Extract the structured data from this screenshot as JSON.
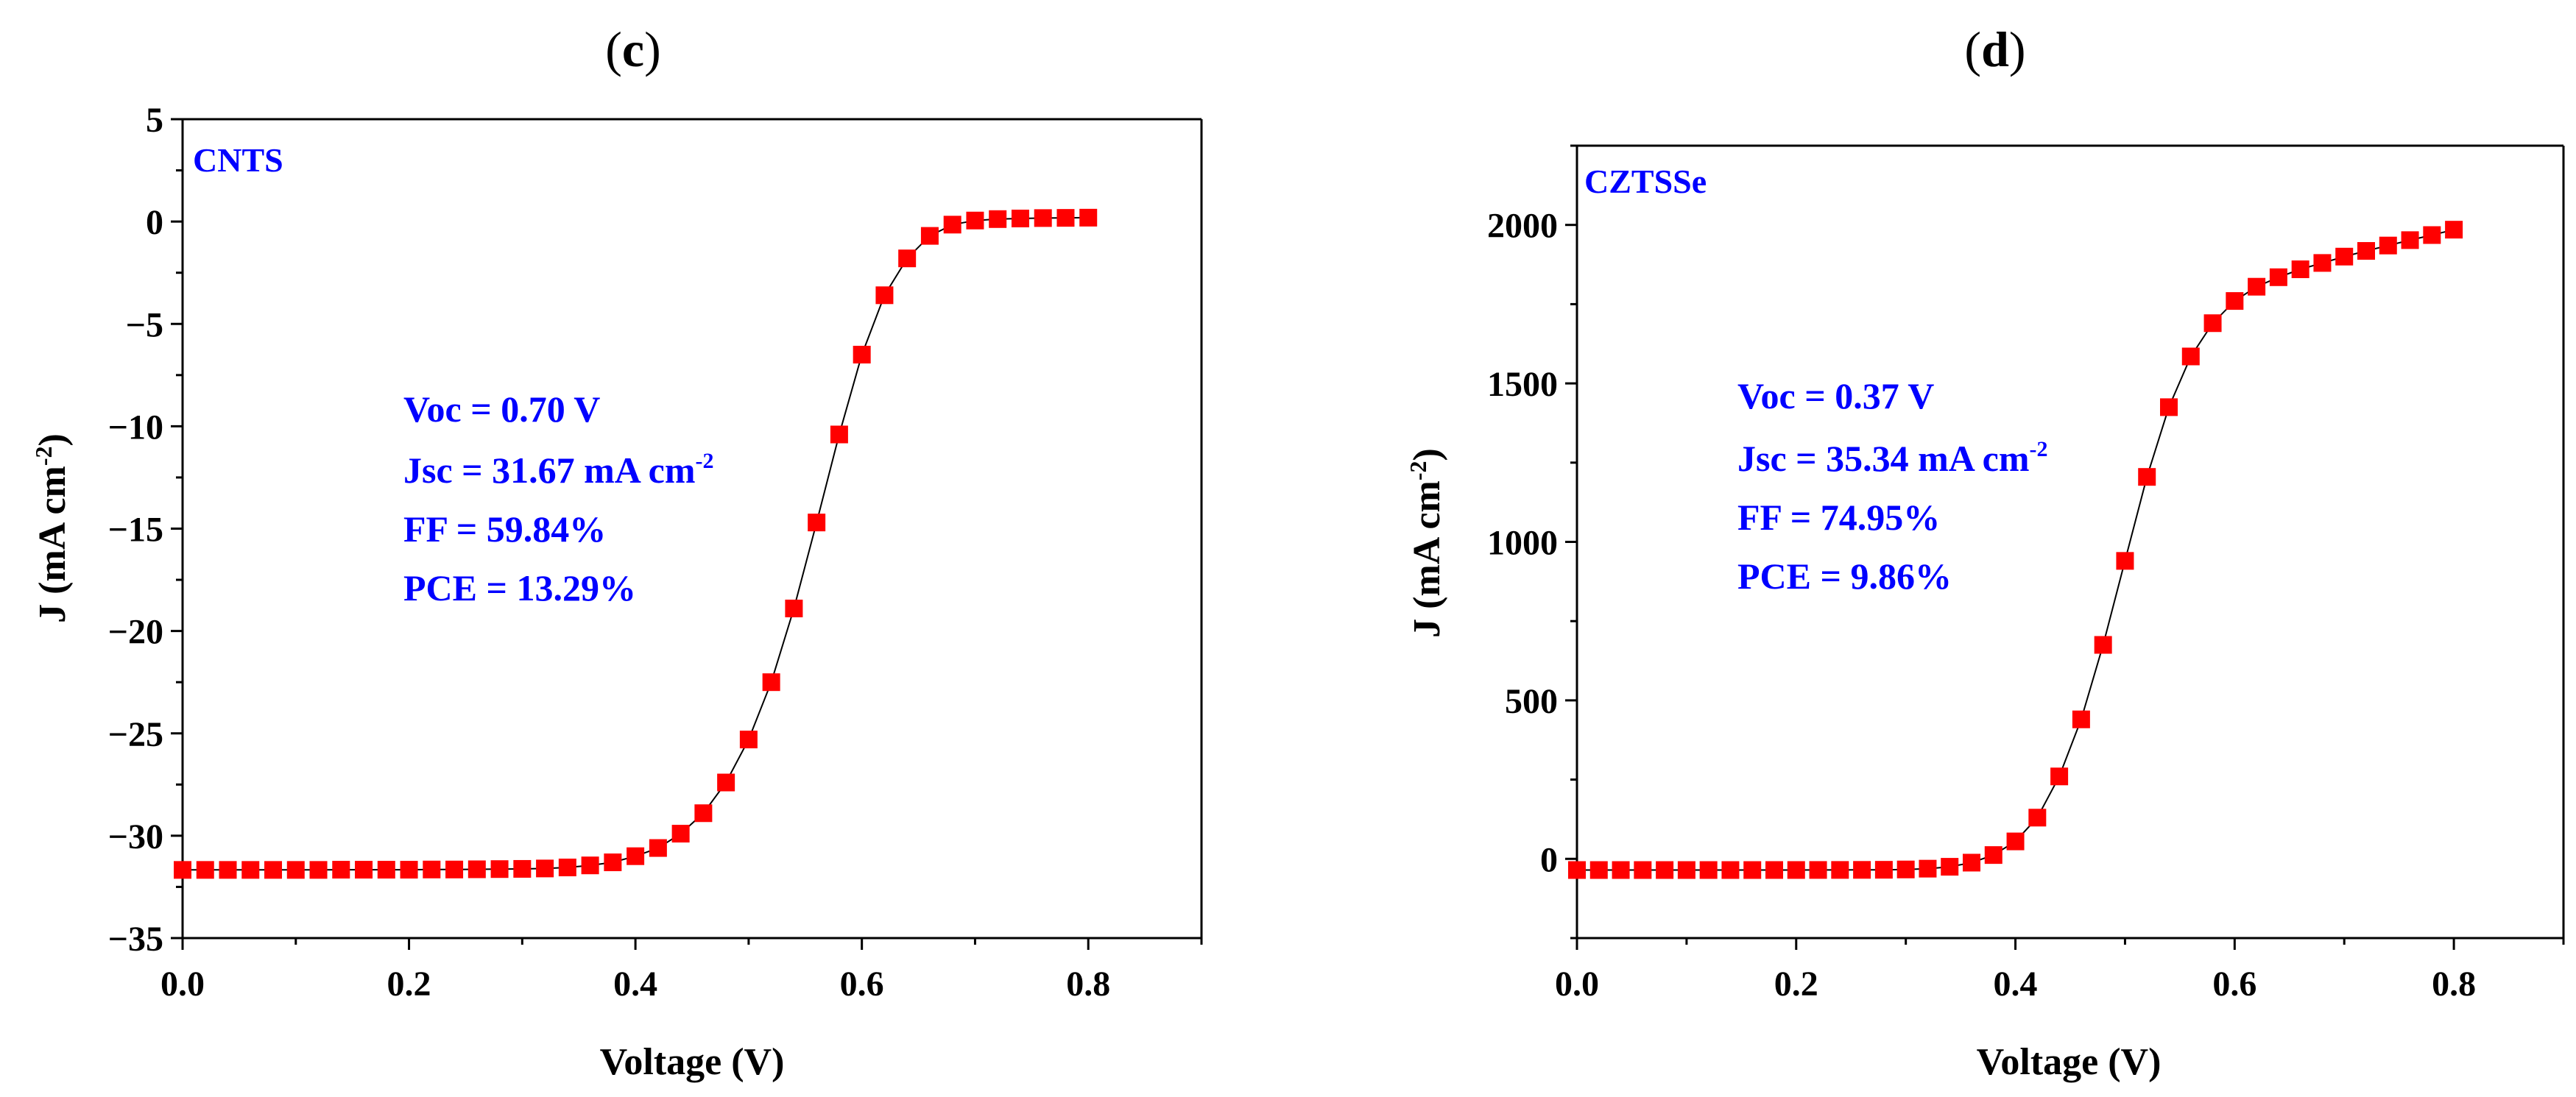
{
  "chart_data": [
    {
      "type": "line",
      "panel_label_prefix": "(",
      "panel_letter": "c",
      "panel_label_suffix": ")",
      "series_name": "CNTS",
      "xlabel": "Voltage (V)",
      "ylabel_prefix": "J (mA cm",
      "ylabel_sup": "-2",
      "ylabel_suffix": ")",
      "xlim": [
        0,
        0.9
      ],
      "ylim": [
        -35,
        5
      ],
      "xticks": [
        0.0,
        0.2,
        0.4,
        0.6,
        0.8
      ],
      "xtick_labels": [
        "0.0",
        "0.2",
        "0.4",
        "0.6",
        "0.8"
      ],
      "yticks": [
        5,
        0,
        -5,
        -10,
        -15,
        -20,
        -25,
        -30,
        -35
      ],
      "ytick_labels": [
        "5",
        "0",
        "−5",
        "−10",
        "−15",
        "−20",
        "−25",
        "−30",
        "−35"
      ],
      "x": [
        0.0,
        0.02,
        0.04,
        0.06,
        0.08,
        0.1,
        0.12,
        0.14,
        0.16,
        0.18,
        0.2,
        0.22,
        0.24,
        0.26,
        0.28,
        0.3,
        0.32,
        0.34,
        0.36,
        0.38,
        0.4,
        0.42,
        0.44,
        0.46,
        0.48,
        0.5,
        0.52,
        0.54,
        0.56,
        0.58,
        0.6,
        0.62,
        0.64,
        0.66,
        0.68,
        0.7,
        0.72,
        0.74,
        0.76,
        0.78,
        0.8
      ],
      "y": [
        -31.67,
        -31.67,
        -31.67,
        -31.67,
        -31.67,
        -31.67,
        -31.67,
        -31.66,
        -31.66,
        -31.66,
        -31.66,
        -31.65,
        -31.65,
        -31.64,
        -31.63,
        -31.62,
        -31.6,
        -31.55,
        -31.45,
        -31.3,
        -31.0,
        -30.6,
        -29.9,
        -28.9,
        -27.4,
        -25.3,
        -22.5,
        -18.9,
        -14.7,
        -10.4,
        -6.5,
        -3.6,
        -1.8,
        -0.7,
        -0.15,
        0.05,
        0.12,
        0.15,
        0.17,
        0.18,
        0.19
      ],
      "marker_color": "#ff0000",
      "line_color": "#000000",
      "annotation_color": "#0000ff",
      "annotations": {
        "voc": "Voc = 0.70 V",
        "jsc_prefix": "Jsc = 31.67 mA cm",
        "jsc_sup": "-2",
        "ff": "FF = 59.84%",
        "pce": "PCE = 13.29%"
      }
    },
    {
      "type": "line",
      "panel_label_prefix": "(",
      "panel_letter": "d",
      "panel_label_suffix": ")",
      "series_name": "CZTSSe",
      "xlabel": "Voltage (V)",
      "ylabel_prefix": "J (mA cm",
      "ylabel_sup": "-2",
      "ylabel_suffix": ")",
      "xlim": [
        0,
        0.9
      ],
      "ylim": [
        -250,
        2250
      ],
      "xticks": [
        0.0,
        0.2,
        0.4,
        0.6,
        0.8
      ],
      "xtick_labels": [
        "0.0",
        "0.2",
        "0.4",
        "0.6",
        "0.8"
      ],
      "yticks": [
        2000,
        1500,
        1000,
        500,
        0
      ],
      "ytick_labels": [
        "2000",
        "1500",
        "1000",
        "500",
        "0"
      ],
      "x": [
        0.0,
        0.02,
        0.04,
        0.06,
        0.08,
        0.1,
        0.12,
        0.14,
        0.16,
        0.18,
        0.2,
        0.22,
        0.24,
        0.26,
        0.28,
        0.3,
        0.32,
        0.34,
        0.36,
        0.38,
        0.4,
        0.42,
        0.44,
        0.46,
        0.48,
        0.5,
        0.52,
        0.54,
        0.56,
        0.58,
        0.6,
        0.62,
        0.64,
        0.66,
        0.68,
        0.7,
        0.72,
        0.74,
        0.76,
        0.78,
        0.8
      ],
      "y": [
        -35.3,
        -35.3,
        -35.3,
        -35.3,
        -35.3,
        -35.3,
        -35.3,
        -35.3,
        -35.3,
        -35.2,
        -35.2,
        -35.1,
        -35.0,
        -34.8,
        -34.5,
        -33.5,
        -31.0,
        -25.0,
        -12.0,
        12.0,
        55.0,
        130.0,
        260.0,
        440.0,
        675.0,
        940.0,
        1205.0,
        1425.0,
        1585.0,
        1690.0,
        1760.0,
        1805.0,
        1835.0,
        1860.0,
        1880.0,
        1900.0,
        1918.0,
        1935.0,
        1952.0,
        1968.0,
        1985.0
      ],
      "marker_color": "#ff0000",
      "line_color": "#000000",
      "annotation_color": "#0000ff",
      "annotations": {
        "voc": "Voc = 0.37 V",
        "jsc_prefix": "Jsc = 35.34 mA cm",
        "jsc_sup": "-2",
        "ff": "FF = 74.95%",
        "pce": "PCE = 9.86%"
      }
    }
  ]
}
